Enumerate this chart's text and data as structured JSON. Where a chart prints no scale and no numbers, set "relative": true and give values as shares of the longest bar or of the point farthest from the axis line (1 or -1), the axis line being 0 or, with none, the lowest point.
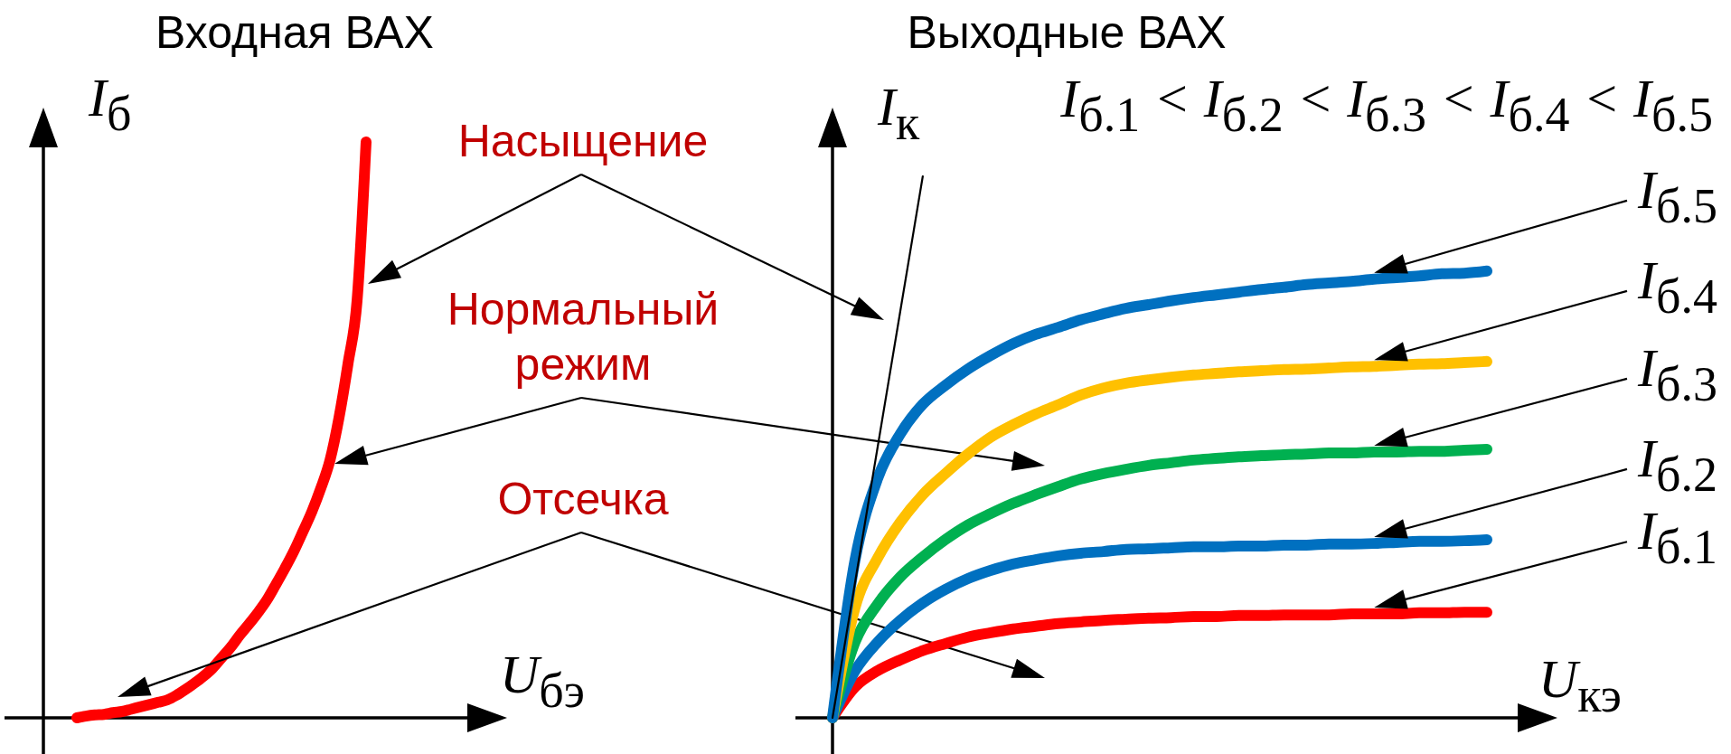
{
  "chart_data": [
    {
      "type": "line",
      "title": "Входная ВАХ",
      "xlabel": "U$_{бэ}$",
      "ylabel": "I$_{б}$",
      "relative": true,
      "categories": [
        null,
        null,
        null,
        null,
        null,
        null,
        null,
        null,
        null,
        null,
        null,
        null,
        null,
        null,
        null,
        null,
        null,
        null,
        null,
        null,
        null,
        null,
        null,
        null,
        null,
        null,
        null,
        null,
        null,
        null,
        null,
        null,
        null
      ],
      "series": [
        {
          "color": "#ff0000",
          "values": [
            0,
            0.003,
            0.005,
            0.006,
            0.009,
            0.011,
            0.015,
            0.019,
            0.023,
            0.027,
            0.031,
            0.039,
            0.049,
            0.06,
            0.072,
            0.086,
            0.104,
            0.122,
            0.143,
            0.162,
            0.182,
            0.204,
            0.231,
            0.259,
            0.289,
            0.323,
            0.358,
            0.399,
            0.447,
            0.521,
            0.615,
            0.724,
            1
          ]
        }
      ],
      "annotations": [
        "Насыщение",
        "Нормальный режим",
        "Отсечка"
      ]
    },
    {
      "type": "line",
      "title": "Выходные ВАХ",
      "xlabel": "U$_{кэ}$",
      "ylabel": "I$_{к}$",
      "relative": true,
      "categories": [
        null,
        null,
        null,
        null,
        null,
        null,
        null,
        null,
        null,
        null,
        null,
        null,
        null,
        null,
        null,
        null,
        null,
        null,
        null,
        null,
        null,
        null,
        null,
        null,
        null,
        null,
        null,
        null,
        null,
        null
      ],
      "series": [
        {
          "name": "I$_{б.1}$",
          "color": "#ff0000",
          "values": [
            0,
            0.057,
            0.087,
            0.107,
            0.124,
            0.137,
            0.149,
            0.157,
            0.164,
            0.169,
            0.174,
            0.177,
            0.18,
            0.182,
            0.184,
            0.185,
            0.187,
            0.187,
            0.189,
            0.189,
            0.19,
            0.19,
            0.19,
            0.192,
            0.192,
            0.192,
            0.194,
            0.194,
            0.195,
            0.195
          ]
        },
        {
          "name": "I$_{б.2}$",
          "color": "#0070c0",
          "values": [
            0,
            0.087,
            0.14,
            0.18,
            0.212,
            0.237,
            0.257,
            0.272,
            0.284,
            0.292,
            0.299,
            0.304,
            0.307,
            0.311,
            0.312,
            0.314,
            0.316,
            0.316,
            0.317,
            0.317,
            0.319,
            0.319,
            0.321,
            0.321,
            0.322,
            0.324,
            0.326,
            0.326,
            0.327,
            0.329
          ]
        },
        {
          "name": "I$_{б.3}$",
          "color": "#00b050",
          "values": [
            0,
            0.14,
            0.21,
            0.26,
            0.297,
            0.329,
            0.356,
            0.377,
            0.396,
            0.412,
            0.427,
            0.441,
            0.451,
            0.459,
            0.466,
            0.471,
            0.476,
            0.479,
            0.482,
            0.484,
            0.486,
            0.487,
            0.489,
            0.489,
            0.491,
            0.491,
            0.492,
            0.492,
            0.494,
            0.496
          ]
        },
        {
          "name": "I$_{б.4}$",
          "color": "#ffc000",
          "values": [
            0,
            0.204,
            0.295,
            0.361,
            0.412,
            0.451,
            0.487,
            0.518,
            0.541,
            0.561,
            0.578,
            0.596,
            0.609,
            0.618,
            0.624,
            0.629,
            0.633,
            0.636,
            0.639,
            0.641,
            0.643,
            0.644,
            0.646,
            0.648,
            0.649,
            0.651,
            0.653,
            0.654,
            0.656,
            0.658
          ]
        },
        {
          "name": "I$_{б.5}$",
          "color": "#0070c0",
          "values": [
            0,
            0.292,
            0.442,
            0.524,
            0.579,
            0.614,
            0.644,
            0.669,
            0.691,
            0.708,
            0.721,
            0.735,
            0.746,
            0.756,
            0.763,
            0.77,
            0.776,
            0.781,
            0.786,
            0.791,
            0.795,
            0.8,
            0.803,
            0.806,
            0.81,
            0.813,
            0.816,
            0.82,
            0.821,
            0.825
          ]
        },
        {
          "color": "#000000",
          "values": [
            0,
            0.25,
            0.5,
            0.75,
            1,
            null,
            null,
            null,
            null,
            null,
            null,
            null,
            null,
            null,
            null,
            null,
            null,
            null,
            null,
            null,
            null,
            null,
            null,
            null,
            null,
            null,
            null,
            null,
            null,
            null
          ]
        }
      ],
      "annotations": [
        "I$_{б.1}$ < I$_{б.2}$ < I$_{б.3}$ < I$_{б.4}$ < I$_{б.5}$"
      ]
    }
  ]
}
